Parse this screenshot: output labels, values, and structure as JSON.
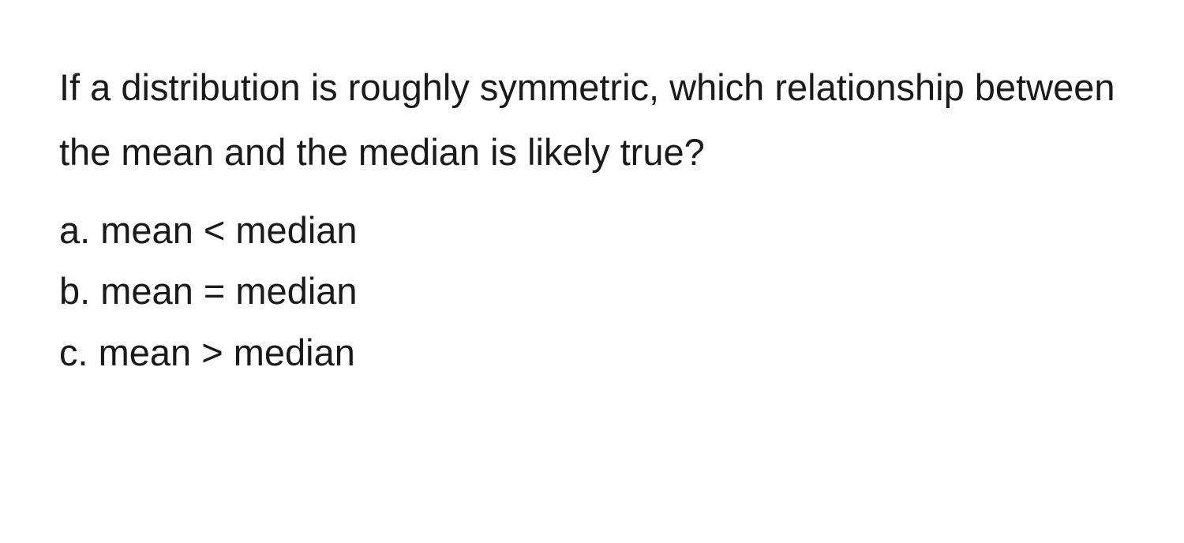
{
  "question": "If a distribution is roughly symmetric, which relationship between the mean and the median is likely true?",
  "options": [
    {
      "letter": "a",
      "text": "mean < median"
    },
    {
      "letter": "b",
      "text": "mean = median"
    },
    {
      "letter": "c",
      "text": "mean > median"
    }
  ],
  "colors": {
    "background": "#ffffff",
    "text": "#1a1a1a"
  },
  "typography": {
    "font_size_pt": 35,
    "font_weight": 400,
    "line_height": 1.75
  }
}
